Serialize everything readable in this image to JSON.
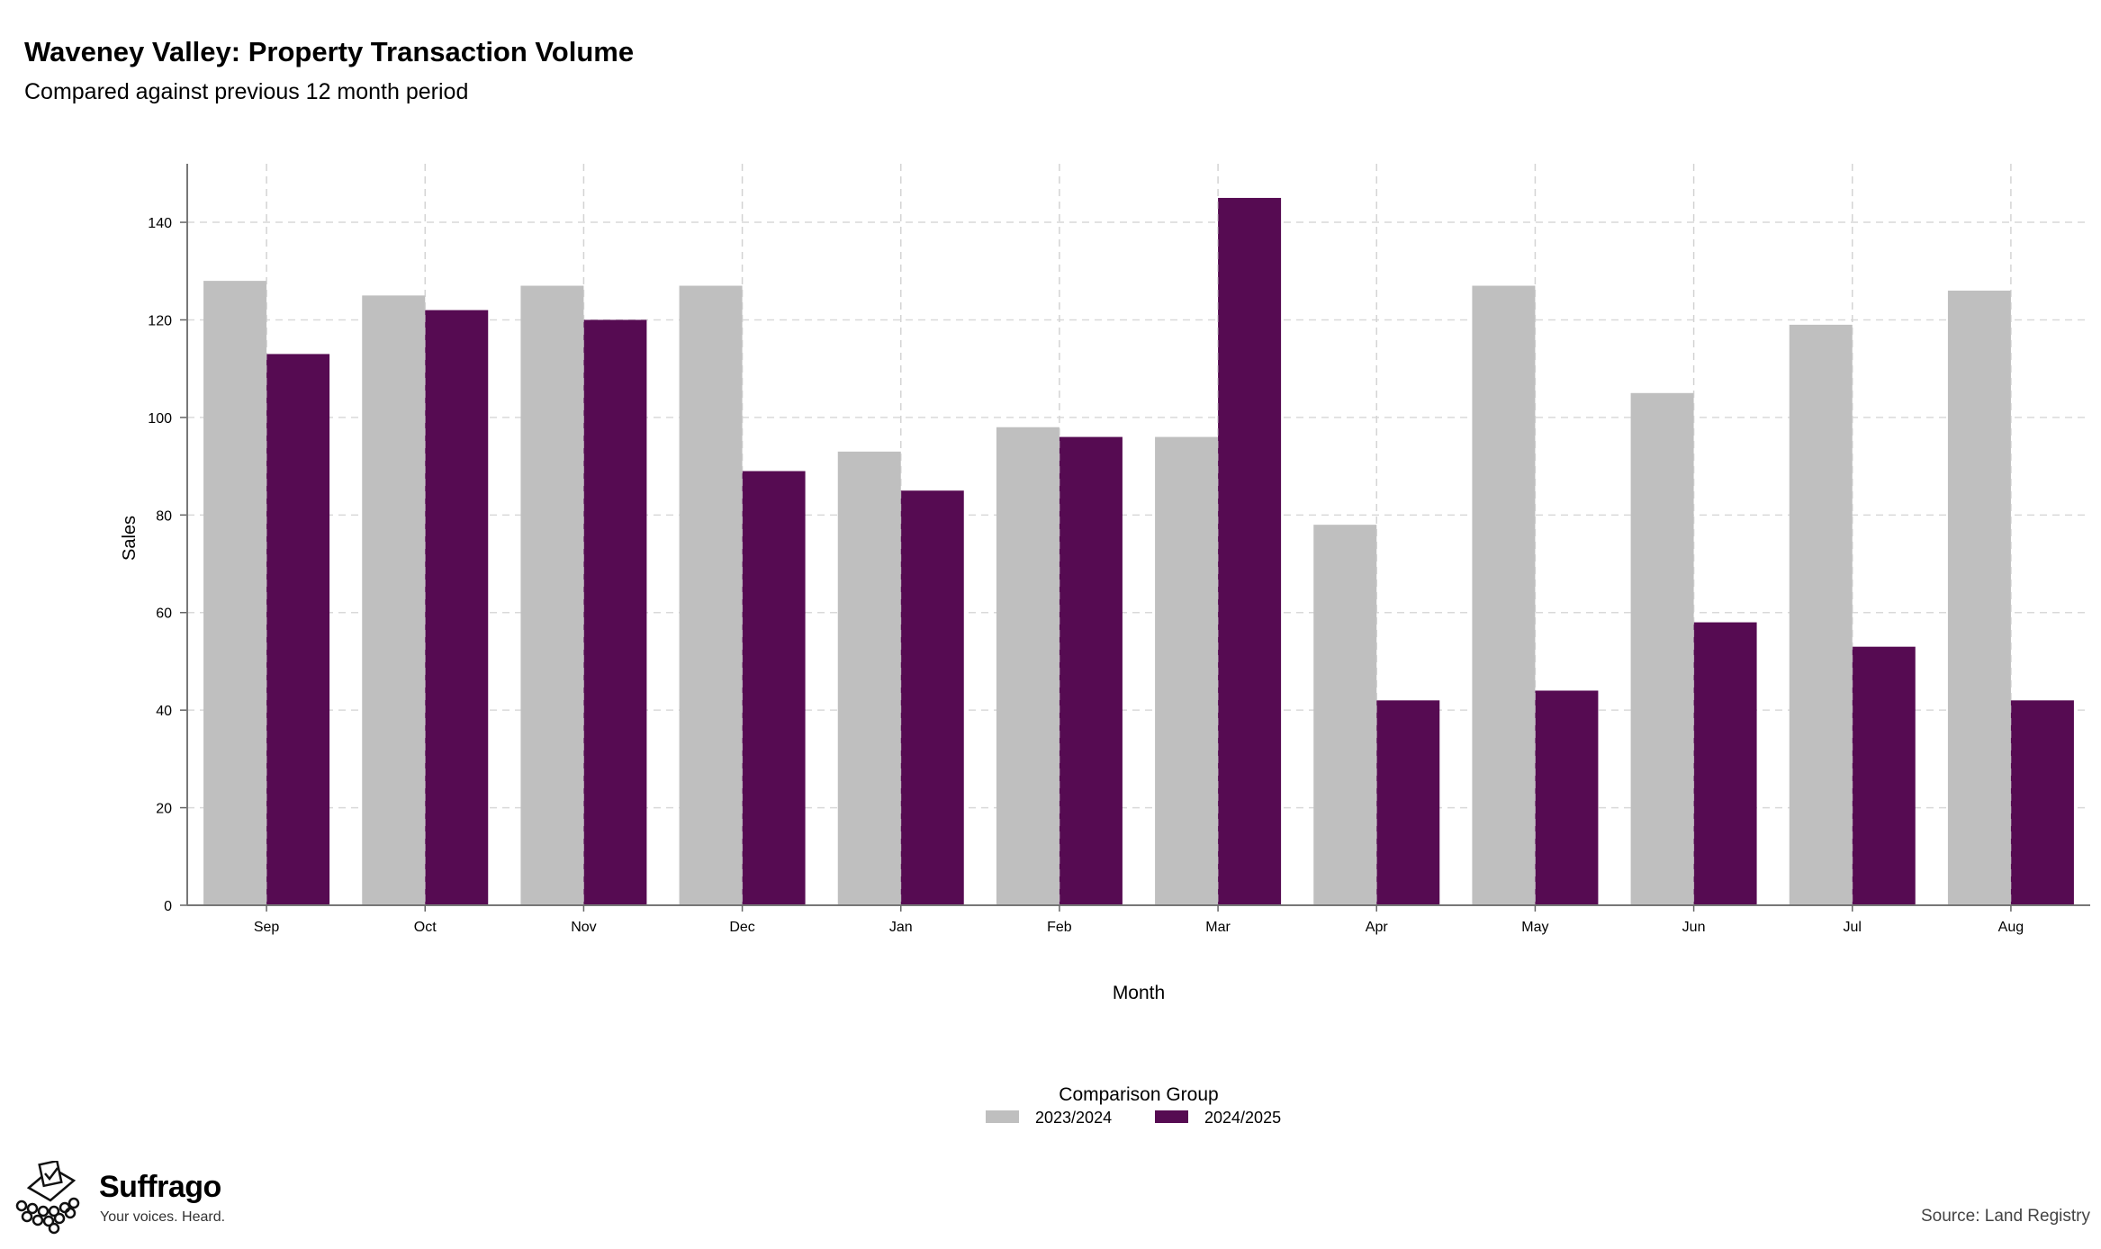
{
  "header": {
    "title": "Waveney Valley: Property Transaction Volume",
    "subtitle": "Compared against previous 12 month period"
  },
  "chart_data": {
    "type": "bar",
    "categories": [
      "Sep",
      "Oct",
      "Nov",
      "Dec",
      "Jan",
      "Feb",
      "Mar",
      "Apr",
      "May",
      "Jun",
      "Jul",
      "Aug"
    ],
    "series": [
      {
        "name": "2023/2024",
        "color": "#bfbfbf",
        "values": [
          128,
          125,
          127,
          127,
          93,
          98,
          96,
          78,
          127,
          105,
          119,
          126
        ]
      },
      {
        "name": "2024/2025",
        "color": "#560b52",
        "values": [
          113,
          122,
          120,
          89,
          85,
          96,
          145,
          42,
          44,
          58,
          53,
          42
        ]
      }
    ],
    "xlabel": "Month",
    "ylabel": "Sales",
    "ylim": [
      0,
      152
    ],
    "yticks": [
      0,
      20,
      40,
      60,
      80,
      100,
      120,
      140
    ],
    "grid": true,
    "legend_title": "Comparison Group",
    "legend_position": "bottom"
  },
  "footer": {
    "brand_name": "Suffrago",
    "brand_tagline": "Your voices. Heard.",
    "source": "Source: Land Registry"
  }
}
